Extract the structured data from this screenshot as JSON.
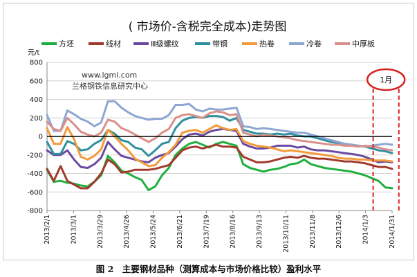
{
  "chart_data": {
    "type": "line",
    "title": "( 市场价-含税完全成本)走势图",
    "ylabel": "元/t",
    "ylim": [
      -800,
      800
    ],
    "yticks": [
      -800,
      -600,
      -400,
      -200,
      0,
      200,
      400,
      600,
      800
    ],
    "xtick_labels": [
      "2013/2/1",
      "2013/3/1",
      "2013/3/29",
      "2013/4/26",
      "2013/5/24",
      "2013/6/21",
      "2013/7/19",
      "2013/8/16",
      "2013/9/13",
      "2013/10/11",
      "2013/11/8",
      "2013/12/6",
      "2014/1/3",
      "2014/1/31"
    ],
    "watermark_line1": "www.lgmi.com",
    "watermark_line2": "兰格钢铁信息研究中心",
    "annotation_label": "1月",
    "annotation_range_x": [
      48.2,
      52
    ],
    "series": [
      {
        "name": "方坯",
        "color": "#1faf3f",
        "values": [
          -360,
          -490,
          -480,
          -500,
          -510,
          -530,
          -540,
          -490,
          -420,
          -210,
          -280,
          -370,
          -400,
          -440,
          -470,
          -580,
          -540,
          -420,
          -340,
          -200,
          -130,
          -80,
          -60,
          -90,
          -120,
          -80,
          -60,
          -80,
          -100,
          -300,
          -340,
          -360,
          -380,
          -360,
          -350,
          -330,
          -300,
          -290,
          -250,
          -300,
          -320,
          -340,
          -350,
          -360,
          -370,
          -380,
          -400,
          -420,
          -450,
          -480,
          -550,
          -560
        ]
      },
      {
        "name": "线材",
        "color": "#a23a2c",
        "values": [
          -350,
          -480,
          -320,
          -480,
          -520,
          -560,
          -560,
          -490,
          -400,
          -250,
          -300,
          -390,
          -380,
          -360,
          -360,
          -360,
          -350,
          -330,
          -310,
          -230,
          -150,
          -120,
          -110,
          -130,
          -110,
          -90,
          -110,
          -110,
          -120,
          -220,
          -250,
          -280,
          -280,
          -270,
          -250,
          -230,
          -220,
          -230,
          -210,
          -230,
          -240,
          -240,
          -250,
          -260,
          -270,
          -270,
          -280,
          -290,
          -310,
          -330,
          -330,
          -350
        ]
      },
      {
        "name": "Ⅲ级螺纹",
        "color": "#6a4aa0",
        "values": [
          -150,
          -200,
          -200,
          -150,
          -250,
          -330,
          -340,
          -300,
          -230,
          -60,
          -140,
          -210,
          -230,
          -250,
          -270,
          -280,
          -230,
          -200,
          -180,
          -110,
          -30,
          20,
          30,
          10,
          50,
          70,
          80,
          70,
          60,
          -80,
          -110,
          -130,
          -130,
          -120,
          -100,
          -100,
          -100,
          -120,
          -110,
          -140,
          -150,
          -150,
          -160,
          -170,
          -180,
          -190,
          -200,
          -220,
          -250,
          -280,
          -270,
          -280
        ]
      },
      {
        "name": "带钢",
        "color": "#2f8f9f",
        "values": [
          -60,
          -190,
          -190,
          -50,
          -80,
          -150,
          -140,
          -80,
          -40,
          70,
          30,
          -40,
          -60,
          -120,
          -140,
          -210,
          -150,
          -80,
          -60,
          90,
          170,
          200,
          210,
          200,
          220,
          220,
          210,
          170,
          200,
          70,
          50,
          30,
          30,
          20,
          30,
          20,
          30,
          10,
          0,
          0,
          -20,
          -40,
          -60,
          -70,
          -80,
          -90,
          -100,
          -110,
          -130,
          -150,
          -160,
          -180
        ]
      },
      {
        "name": "热卷",
        "color": "#f39a3b",
        "values": [
          90,
          -80,
          -80,
          100,
          -30,
          -220,
          -250,
          -210,
          -140,
          70,
          0,
          -80,
          -150,
          -240,
          -280,
          -320,
          -310,
          -230,
          -170,
          -90,
          40,
          60,
          70,
          40,
          80,
          120,
          90,
          70,
          80,
          -50,
          -80,
          -100,
          -110,
          -120,
          -140,
          -160,
          -150,
          -160,
          -170,
          -180,
          -190,
          -200,
          -210,
          -230,
          -240,
          -240,
          -250,
          -250,
          -260,
          -260,
          -260,
          -270
        ]
      },
      {
        "name": "冷卷",
        "color": "#8ea6d2",
        "values": [
          230,
          60,
          60,
          280,
          240,
          190,
          160,
          110,
          150,
          380,
          380,
          310,
          260,
          220,
          200,
          180,
          190,
          190,
          230,
          340,
          340,
          350,
          290,
          270,
          300,
          290,
          290,
          300,
          310,
          110,
          100,
          80,
          90,
          80,
          70,
          60,
          50,
          40,
          40,
          20,
          0,
          -20,
          -40,
          -60,
          -80,
          -90,
          -100,
          -110,
          -100,
          -90,
          -80,
          -90
        ]
      },
      {
        "name": "中厚板",
        "color": "#d9908a",
        "values": [
          160,
          80,
          60,
          200,
          130,
          50,
          20,
          0,
          40,
          180,
          160,
          90,
          60,
          20,
          -20,
          -60,
          -20,
          40,
          80,
          200,
          230,
          240,
          220,
          200,
          250,
          270,
          260,
          230,
          240,
          40,
          20,
          0,
          20,
          10,
          0,
          -10,
          -20,
          -40,
          -50,
          -60,
          -70,
          -80,
          -90,
          -90,
          -100,
          -100,
          -110,
          -100,
          -110,
          -120,
          -140,
          -150
        ]
      }
    ]
  },
  "caption": "图 2　主要钢材品种（测算成本与市场价格比较）盈利水平"
}
